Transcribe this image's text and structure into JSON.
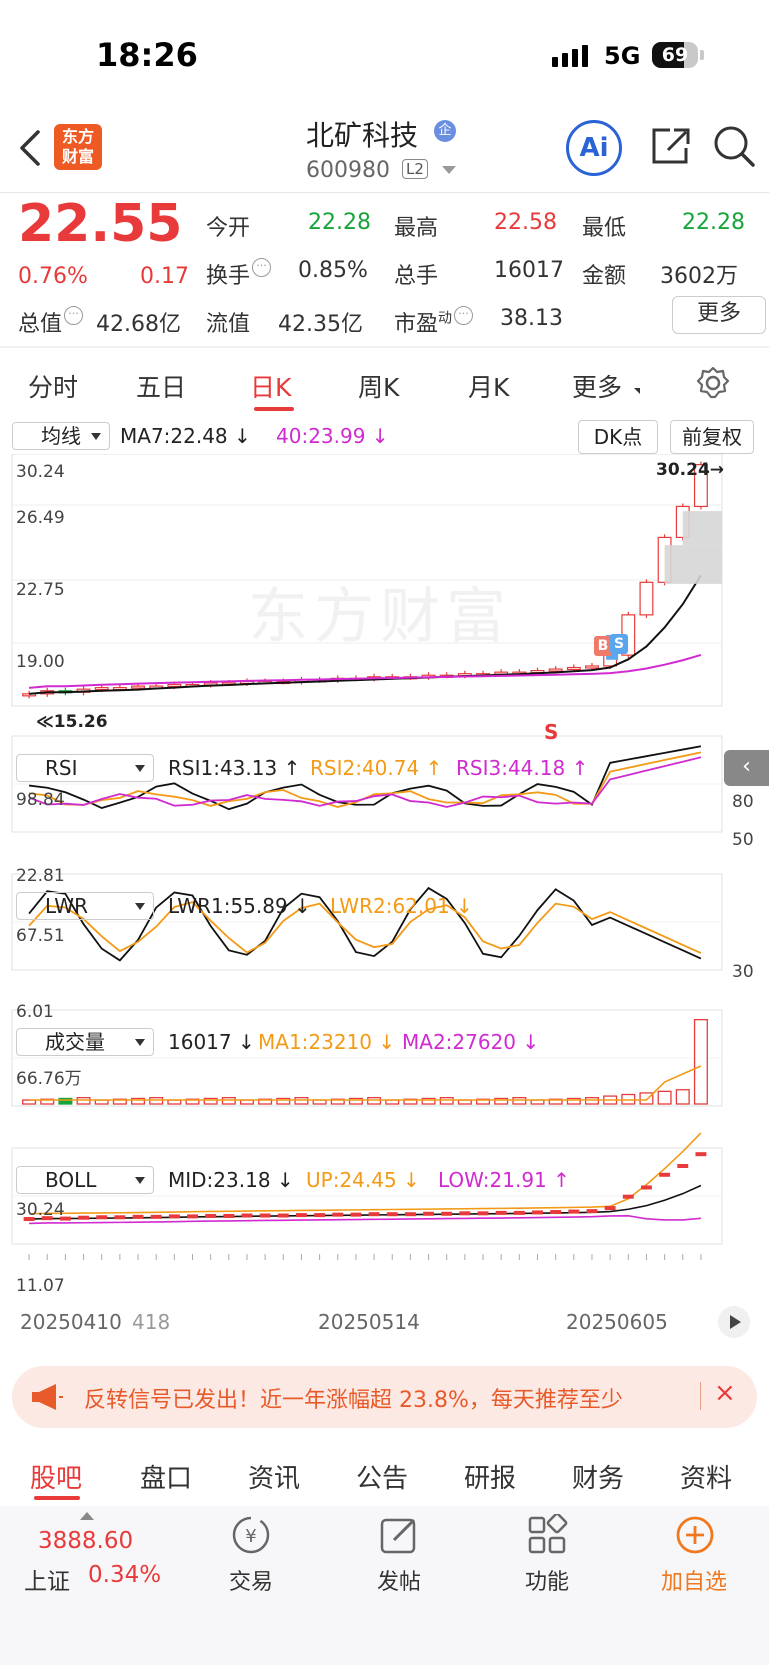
{
  "status_bar": {
    "time": "18:26",
    "network": "5G",
    "battery": "69",
    "battery_level": 0.69
  },
  "header": {
    "logo_line1": "东方",
    "logo_line2": "财富",
    "stock_name": "北矿科技",
    "badge": "企",
    "stock_code": "600980",
    "level_badge": "L2",
    "ai_label": "Ai"
  },
  "quote": {
    "price": "22.55",
    "change_pct": "0.76%",
    "change": "0.17",
    "open_label": "今开",
    "open": "22.28",
    "high_label": "最高",
    "high": "22.58",
    "low_label": "最低",
    "low": "22.28",
    "turnover_label": "换手",
    "turnover": "0.85%",
    "volume_label": "总手",
    "volume": "16017",
    "amount_label": "金额",
    "amount": "3602万",
    "mktcap_label": "总值",
    "mktcap": "42.68亿",
    "float_label": "流值",
    "float": "42.35亿",
    "pe_label": "市盈",
    "pe_sup": "动",
    "pe": "38.13",
    "more_label": "更多"
  },
  "period_tabs": [
    "分时",
    "五日",
    "日K",
    "周K",
    "月K",
    "更多"
  ],
  "kline_panel": {
    "selector": "均线",
    "ma7": "MA7:22.48",
    "ma40": "40:23.99",
    "dk_label": "DK点",
    "adjust_label": "前复权",
    "y_labels": [
      "30.24",
      "26.49",
      "22.75",
      "19.00",
      "15.26"
    ],
    "high_marker": "30.24",
    "low_marker": "15.26",
    "watermark": "东方财富",
    "b_label": "B",
    "s_label": "S",
    "s_red": "S"
  },
  "rsi_panel": {
    "selector": "RSI",
    "rsi1": "RSI1:43.13",
    "rsi2": "RSI2:40.74",
    "rsi3": "RSI3:44.18",
    "y_top": "98.84",
    "y_bottom": "22.81",
    "r80": "80",
    "r50": "50"
  },
  "lwr_panel": {
    "selector": "LWR",
    "lwr1": "LWR1:55.89",
    "lwr2": "LWR2:62.01",
    "y_top": "67.51",
    "y_bottom": "6.01",
    "r30": "30"
  },
  "volume_panel": {
    "selector": "成交量",
    "vol": "16017",
    "ma1": "MA1:23210",
    "ma2": "MA2:27620",
    "y_top": "66.76万"
  },
  "boll_panel": {
    "selector": "BOLL",
    "mid": "MID:23.18",
    "up": "UP:24.45",
    "low": "LOW:21.91",
    "y_top": "30.24",
    "y_bottom": "11.07"
  },
  "date_axis": [
    "20250410",
    "418",
    "20250514",
    "20250605"
  ],
  "banner": {
    "text": "反转信号已发出！近一年涨幅超 23.8%，每天推荐至少",
    "close": "×"
  },
  "bottom_tabs": [
    "股吧",
    "盘口",
    "资讯",
    "公告",
    "研报",
    "财务",
    "资料"
  ],
  "bottom_bar": {
    "index_value": "3888.60",
    "index_name": "上证",
    "index_pct": "0.34%",
    "trade": "交易",
    "post": "发帖",
    "features": "功能",
    "add_watch": "加自选"
  },
  "chart_data": {
    "type": "candlestick",
    "title": "北矿科技 日K",
    "y_range": [
      15.26,
      30.24
    ],
    "close_series": [
      15.4,
      15.6,
      15.5,
      15.7,
      15.8,
      15.8,
      15.9,
      15.9,
      16.0,
      16.0,
      16.1,
      16.1,
      16.2,
      16.2,
      16.2,
      16.3,
      16.3,
      16.4,
      16.4,
      16.5,
      16.5,
      16.5,
      16.6,
      16.6,
      16.7,
      16.7,
      16.8,
      16.8,
      16.9,
      17.0,
      17.1,
      17.2,
      17.9,
      20.5,
      22.6,
      25.5,
      27.5,
      30.2
    ],
    "ma7": 22.48,
    "ma40": 23.99,
    "rsi": {
      "rsi1": 43.13,
      "rsi2": 40.74,
      "rsi3": 44.18,
      "range": [
        22.81,
        98.84
      ]
    },
    "lwr": {
      "lwr1": 55.89,
      "lwr2": 62.01,
      "range": [
        6.01,
        67.51
      ]
    },
    "volume": {
      "last": 16017,
      "ma1": 23210,
      "ma2": 27620,
      "max": 667600
    },
    "boll": {
      "mid": 23.18,
      "up": 24.45,
      "low": 21.91,
      "range": [
        11.07,
        30.24
      ]
    }
  }
}
